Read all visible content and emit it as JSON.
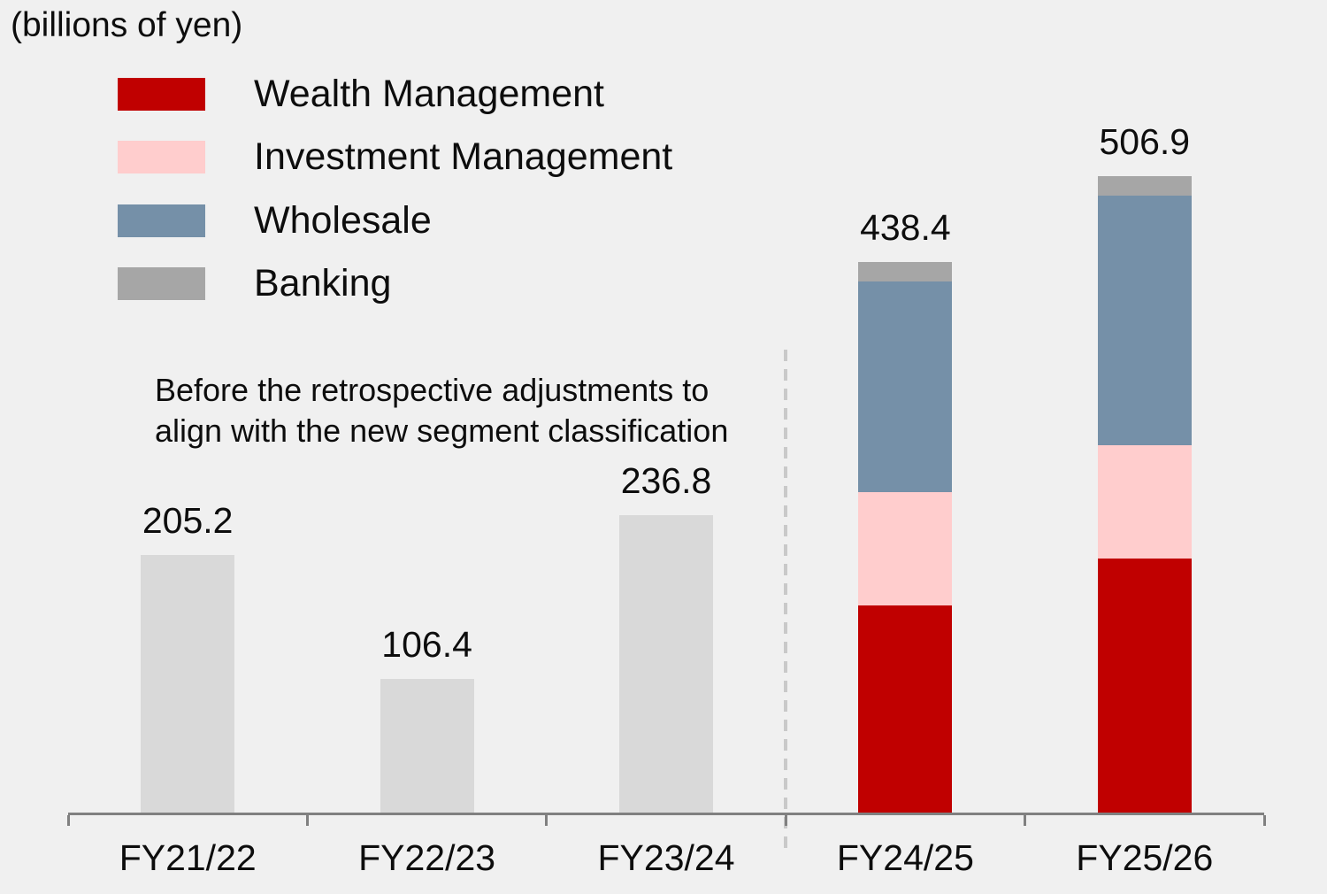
{
  "title": "(billions of yen)",
  "legend": {
    "items": [
      {
        "label": "Wealth Management",
        "color": "#c00000"
      },
      {
        "label": "Investment Management",
        "color": "#ffcdcd"
      },
      {
        "label": "Wholesale",
        "color": "#7590a8"
      },
      {
        "label": "Banking",
        "color": "#a6a6a6"
      }
    ]
  },
  "annotation": {
    "line1": "Before the retrospective adjustments to",
    "line2": "align with the new segment classification"
  },
  "chart_data": {
    "type": "bar",
    "stacked": true,
    "title": "(billions of yen)",
    "unit": "billions of yen",
    "categories": [
      "FY21/22",
      "FY22/23",
      "FY23/24",
      "FY24/25",
      "FY25/26"
    ],
    "totals": [
      205.2,
      106.4,
      236.8,
      438.4,
      506.9
    ],
    "total_labels": [
      "205.2",
      "106.4",
      "236.8",
      "438.4",
      "506.9"
    ],
    "pre_adjustment_series": {
      "name": "Total before retrospective adjustments",
      "color": "#d9d9d9",
      "values": [
        205.2,
        106.4,
        236.8,
        0,
        0
      ]
    },
    "series": [
      {
        "name": "Wealth Management",
        "color": "#c00000",
        "values": [
          0,
          0,
          0,
          165.0,
          202.3
        ]
      },
      {
        "name": "Investment Management",
        "color": "#ffcdcd",
        "values": [
          0,
          0,
          0,
          90.2,
          90.2
        ]
      },
      {
        "name": "Wholesale",
        "color": "#7590a8",
        "values": [
          0,
          0,
          0,
          167.7,
          198.8
        ]
      },
      {
        "name": "Banking",
        "color": "#a6a6a6",
        "values": [
          0,
          0,
          0,
          15.5,
          15.6
        ]
      }
    ],
    "separator_after_category": "FY23/24",
    "ylim": [
      0,
      600
    ],
    "grid": false,
    "legend_position": "upper-left",
    "axis_color": "#808080",
    "separator_color": "#c9c9c9",
    "background_color": "#f0f0f0"
  }
}
